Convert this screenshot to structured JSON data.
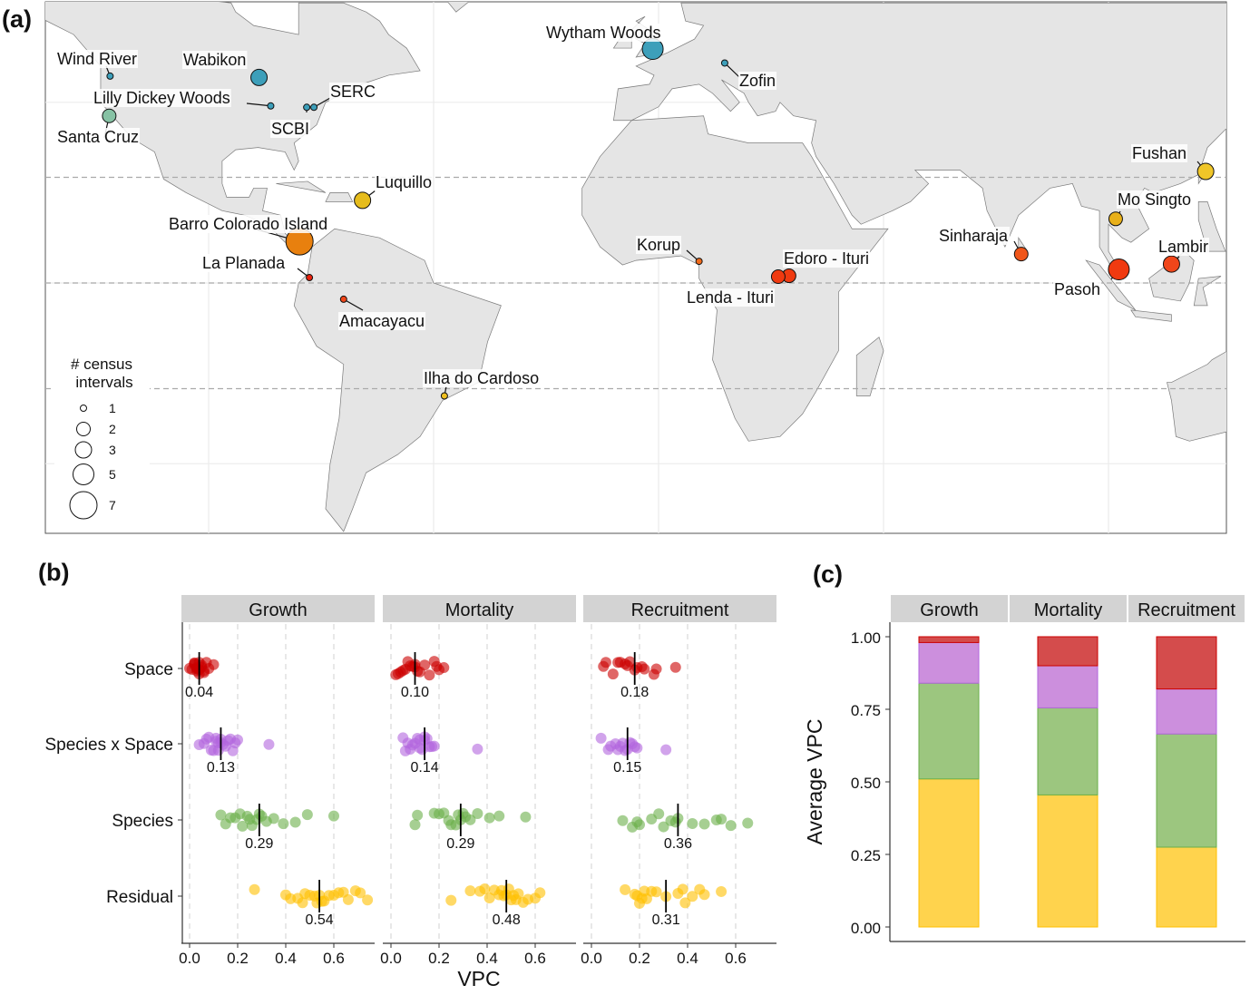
{
  "panel_labels": [
    "(a)",
    "(b)",
    "(c)"
  ],
  "chart_data": [
    {
      "type": "map",
      "projection": "equirectangular",
      "extent": {
        "lon": [
          -136,
          126
        ],
        "lat": [
          -55,
          62
        ]
      },
      "dashed_parallels": [
        23.4,
        0,
        -23.4
      ],
      "land_color": "#e5e5e5",
      "legend": {
        "title_line1": "# census",
        "title_line2": "intervals",
        "sizes": [
          {
            "value": 1,
            "label": "1"
          },
          {
            "value": 2,
            "label": "2"
          },
          {
            "value": 3,
            "label": "3"
          },
          {
            "value": 5,
            "label": "5"
          },
          {
            "value": 7,
            "label": "7"
          }
        ],
        "placement": "bottom-left"
      },
      "sites": [
        {
          "name": "Wind River",
          "lon": -121.9,
          "lat": 45.8,
          "census_intervals": 1,
          "color": "#3d9fba"
        },
        {
          "name": "Wabikon",
          "lon": -88.8,
          "lat": 45.5,
          "census_intervals": 3,
          "color": "#3d9fba"
        },
        {
          "name": "Lilly Dickey Woods",
          "lon": -86.2,
          "lat": 39.2,
          "census_intervals": 1,
          "color": "#3d9fba"
        },
        {
          "name": "SERC",
          "lon": -76.6,
          "lat": 38.9,
          "census_intervals": 1,
          "color": "#3d9fba"
        },
        {
          "name": "SCBI",
          "lon": -78.2,
          "lat": 38.9,
          "census_intervals": 1,
          "color": "#3d9fba"
        },
        {
          "name": "Santa Cruz",
          "lon": -122.1,
          "lat": 37.0,
          "census_intervals": 2,
          "color": "#86c2a4"
        },
        {
          "name": "Wytham Woods",
          "lon": -1.3,
          "lat": 51.8,
          "census_intervals": 5,
          "color": "#3d9fba"
        },
        {
          "name": "Zofin",
          "lon": 14.7,
          "lat": 48.7,
          "census_intervals": 1,
          "color": "#3d9fba"
        },
        {
          "name": "Luquillo",
          "lon": -65.8,
          "lat": 18.3,
          "census_intervals": 3,
          "color": "#e6bc1c"
        },
        {
          "name": "Barro Colorado Island",
          "lon": -79.8,
          "lat": 9.2,
          "census_intervals": 7,
          "color": "#e8800e"
        },
        {
          "name": "La Planada",
          "lon": -77.6,
          "lat": 1.2,
          "census_intervals": 1,
          "color": "#e8220e"
        },
        {
          "name": "Amacayacu",
          "lon": -70.0,
          "lat": -3.6,
          "census_intervals": 1,
          "color": "#f0461a"
        },
        {
          "name": "Ilha do Cardoso",
          "lon": -47.6,
          "lat": -25.0,
          "census_intervals": 1,
          "color": "#f0c020"
        },
        {
          "name": "Korup",
          "lon": 9.0,
          "lat": 4.8,
          "census_intervals": 1,
          "color": "#f06a1a"
        },
        {
          "name": "Edoro - Ituri",
          "lon": 29.0,
          "lat": 1.6,
          "census_intervals": 2,
          "color": "#f03a10"
        },
        {
          "name": "Lenda - Ituri",
          "lon": 26.6,
          "lat": 1.4,
          "census_intervals": 2,
          "color": "#f03a10"
        },
        {
          "name": "Sinharaja",
          "lon": 80.6,
          "lat": 6.4,
          "census_intervals": 2,
          "color": "#f0561a"
        },
        {
          "name": "Pasoh",
          "lon": 102.3,
          "lat": 3.0,
          "census_intervals": 5,
          "color": "#f03a10"
        },
        {
          "name": "Lambir",
          "lon": 114.0,
          "lat": 4.2,
          "census_intervals": 3,
          "color": "#f0461a"
        },
        {
          "name": "Mo Singto",
          "lon": 101.6,
          "lat": 14.2,
          "census_intervals": 2,
          "color": "#e8b01a"
        },
        {
          "name": "Fushan",
          "lon": 121.6,
          "lat": 24.7,
          "census_intervals": 3,
          "color": "#f0c628"
        }
      ]
    },
    {
      "type": "scatter",
      "xlabel": "VPC",
      "xlim": [
        0,
        0.75
      ],
      "xticks": [
        "0.0",
        "0.2",
        "0.4",
        "0.6"
      ],
      "grid": "vertical dashed",
      "rows": [
        "Space",
        "Species x Space",
        "Species",
        "Residual"
      ],
      "row_colors": [
        "#cc0000",
        "#b266dd",
        "#6aaf4a",
        "#ffbf00"
      ],
      "panels": [
        {
          "title": "Growth",
          "series": [
            {
              "row": "Space",
              "median": 0.04,
              "median_label": "0.04",
              "values": [
                0.0,
                0.01,
                0.02,
                0.02,
                0.03,
                0.03,
                0.04,
                0.04,
                0.04,
                0.05,
                0.05,
                0.06,
                0.06,
                0.07,
                0.08,
                0.1,
                0.03,
                0.02
              ]
            },
            {
              "row": "Species x Space",
              "median": 0.13,
              "median_label": "0.13",
              "values": [
                0.04,
                0.06,
                0.07,
                0.08,
                0.09,
                0.1,
                0.11,
                0.12,
                0.12,
                0.13,
                0.13,
                0.14,
                0.15,
                0.16,
                0.17,
                0.18,
                0.19,
                0.2,
                0.33,
                0.11
              ]
            },
            {
              "row": "Species",
              "median": 0.29,
              "median_label": "0.29",
              "values": [
                0.13,
                0.15,
                0.17,
                0.19,
                0.21,
                0.22,
                0.24,
                0.26,
                0.28,
                0.3,
                0.32,
                0.35,
                0.39,
                0.44,
                0.49,
                0.6,
                0.25,
                0.29
              ]
            },
            {
              "row": "Residual",
              "median": 0.54,
              "median_label": "0.54",
              "values": [
                0.27,
                0.4,
                0.42,
                0.45,
                0.47,
                0.48,
                0.5,
                0.52,
                0.54,
                0.56,
                0.58,
                0.6,
                0.62,
                0.64,
                0.66,
                0.69,
                0.71,
                0.74,
                0.55,
                0.53
              ]
            }
          ]
        },
        {
          "title": "Mortality",
          "series": [
            {
              "row": "Space",
              "median": 0.1,
              "median_label": "0.10",
              "values": [
                0.02,
                0.03,
                0.04,
                0.05,
                0.06,
                0.07,
                0.08,
                0.09,
                0.1,
                0.1,
                0.11,
                0.12,
                0.14,
                0.16,
                0.18,
                0.19,
                0.2,
                0.22
              ]
            },
            {
              "row": "Species x Space",
              "median": 0.14,
              "median_label": "0.14",
              "values": [
                0.05,
                0.06,
                0.07,
                0.08,
                0.09,
                0.1,
                0.11,
                0.12,
                0.13,
                0.14,
                0.14,
                0.15,
                0.16,
                0.17,
                0.18,
                0.36,
                0.12
              ]
            },
            {
              "row": "Species",
              "median": 0.29,
              "median_label": "0.29",
              "values": [
                0.1,
                0.11,
                0.18,
                0.2,
                0.22,
                0.24,
                0.25,
                0.27,
                0.28,
                0.29,
                0.3,
                0.31,
                0.33,
                0.36,
                0.41,
                0.45,
                0.56
              ]
            },
            {
              "row": "Residual",
              "median": 0.48,
              "median_label": "0.48",
              "values": [
                0.25,
                0.33,
                0.37,
                0.39,
                0.41,
                0.43,
                0.45,
                0.46,
                0.47,
                0.48,
                0.49,
                0.5,
                0.51,
                0.52,
                0.53,
                0.55,
                0.57,
                0.6,
                0.62
              ]
            }
          ]
        },
        {
          "title": "Recruitment",
          "series": [
            {
              "row": "Space",
              "median": 0.18,
              "median_label": "0.18",
              "values": [
                0.05,
                0.06,
                0.09,
                0.11,
                0.12,
                0.14,
                0.15,
                0.16,
                0.18,
                0.19,
                0.21,
                0.22,
                0.26,
                0.27,
                0.35
              ]
            },
            {
              "row": "Species x Space",
              "median": 0.15,
              "median_label": "0.15",
              "values": [
                0.04,
                0.07,
                0.08,
                0.1,
                0.11,
                0.12,
                0.13,
                0.14,
                0.15,
                0.16,
                0.17,
                0.18,
                0.19,
                0.31
              ]
            },
            {
              "row": "Species",
              "median": 0.36,
              "median_label": "0.36",
              "values": [
                0.13,
                0.17,
                0.19,
                0.2,
                0.25,
                0.28,
                0.3,
                0.33,
                0.35,
                0.36,
                0.42,
                0.47,
                0.52,
                0.54,
                0.58,
                0.65
              ]
            },
            {
              "row": "Residual",
              "median": 0.31,
              "median_label": "0.31",
              "values": [
                0.14,
                0.18,
                0.19,
                0.2,
                0.21,
                0.22,
                0.23,
                0.25,
                0.27,
                0.31,
                0.36,
                0.38,
                0.39,
                0.42,
                0.45,
                0.47,
                0.54
              ]
            }
          ]
        }
      ]
    },
    {
      "type": "bar",
      "stacked": true,
      "ylabel": "Average VPC",
      "ylim": [
        0,
        1
      ],
      "yticks": [
        "0.00",
        "0.25",
        "0.50",
        "0.75",
        "1.00"
      ],
      "categories": [
        "Growth",
        "Mortality",
        "Recruitment"
      ],
      "stack_order_bottom_to_top": [
        "Residual",
        "Species",
        "Species x Space",
        "Space"
      ],
      "colors": {
        "Residual": "#ffd34d",
        "Species": "#9cc67f",
        "Species x Space": "#cc8fdd",
        "Space": "#d44c4c"
      },
      "edge_colors": {
        "Residual": "#ffbf00",
        "Species": "#6aaf4a",
        "Species x Space": "#b266dd",
        "Space": "#cc0000"
      },
      "values": {
        "Residual": [
          0.51,
          0.455,
          0.275
        ],
        "Species": [
          0.33,
          0.3,
          0.39
        ],
        "Species x Space": [
          0.14,
          0.145,
          0.155
        ],
        "Space": [
          0.02,
          0.1,
          0.18
        ]
      }
    }
  ]
}
